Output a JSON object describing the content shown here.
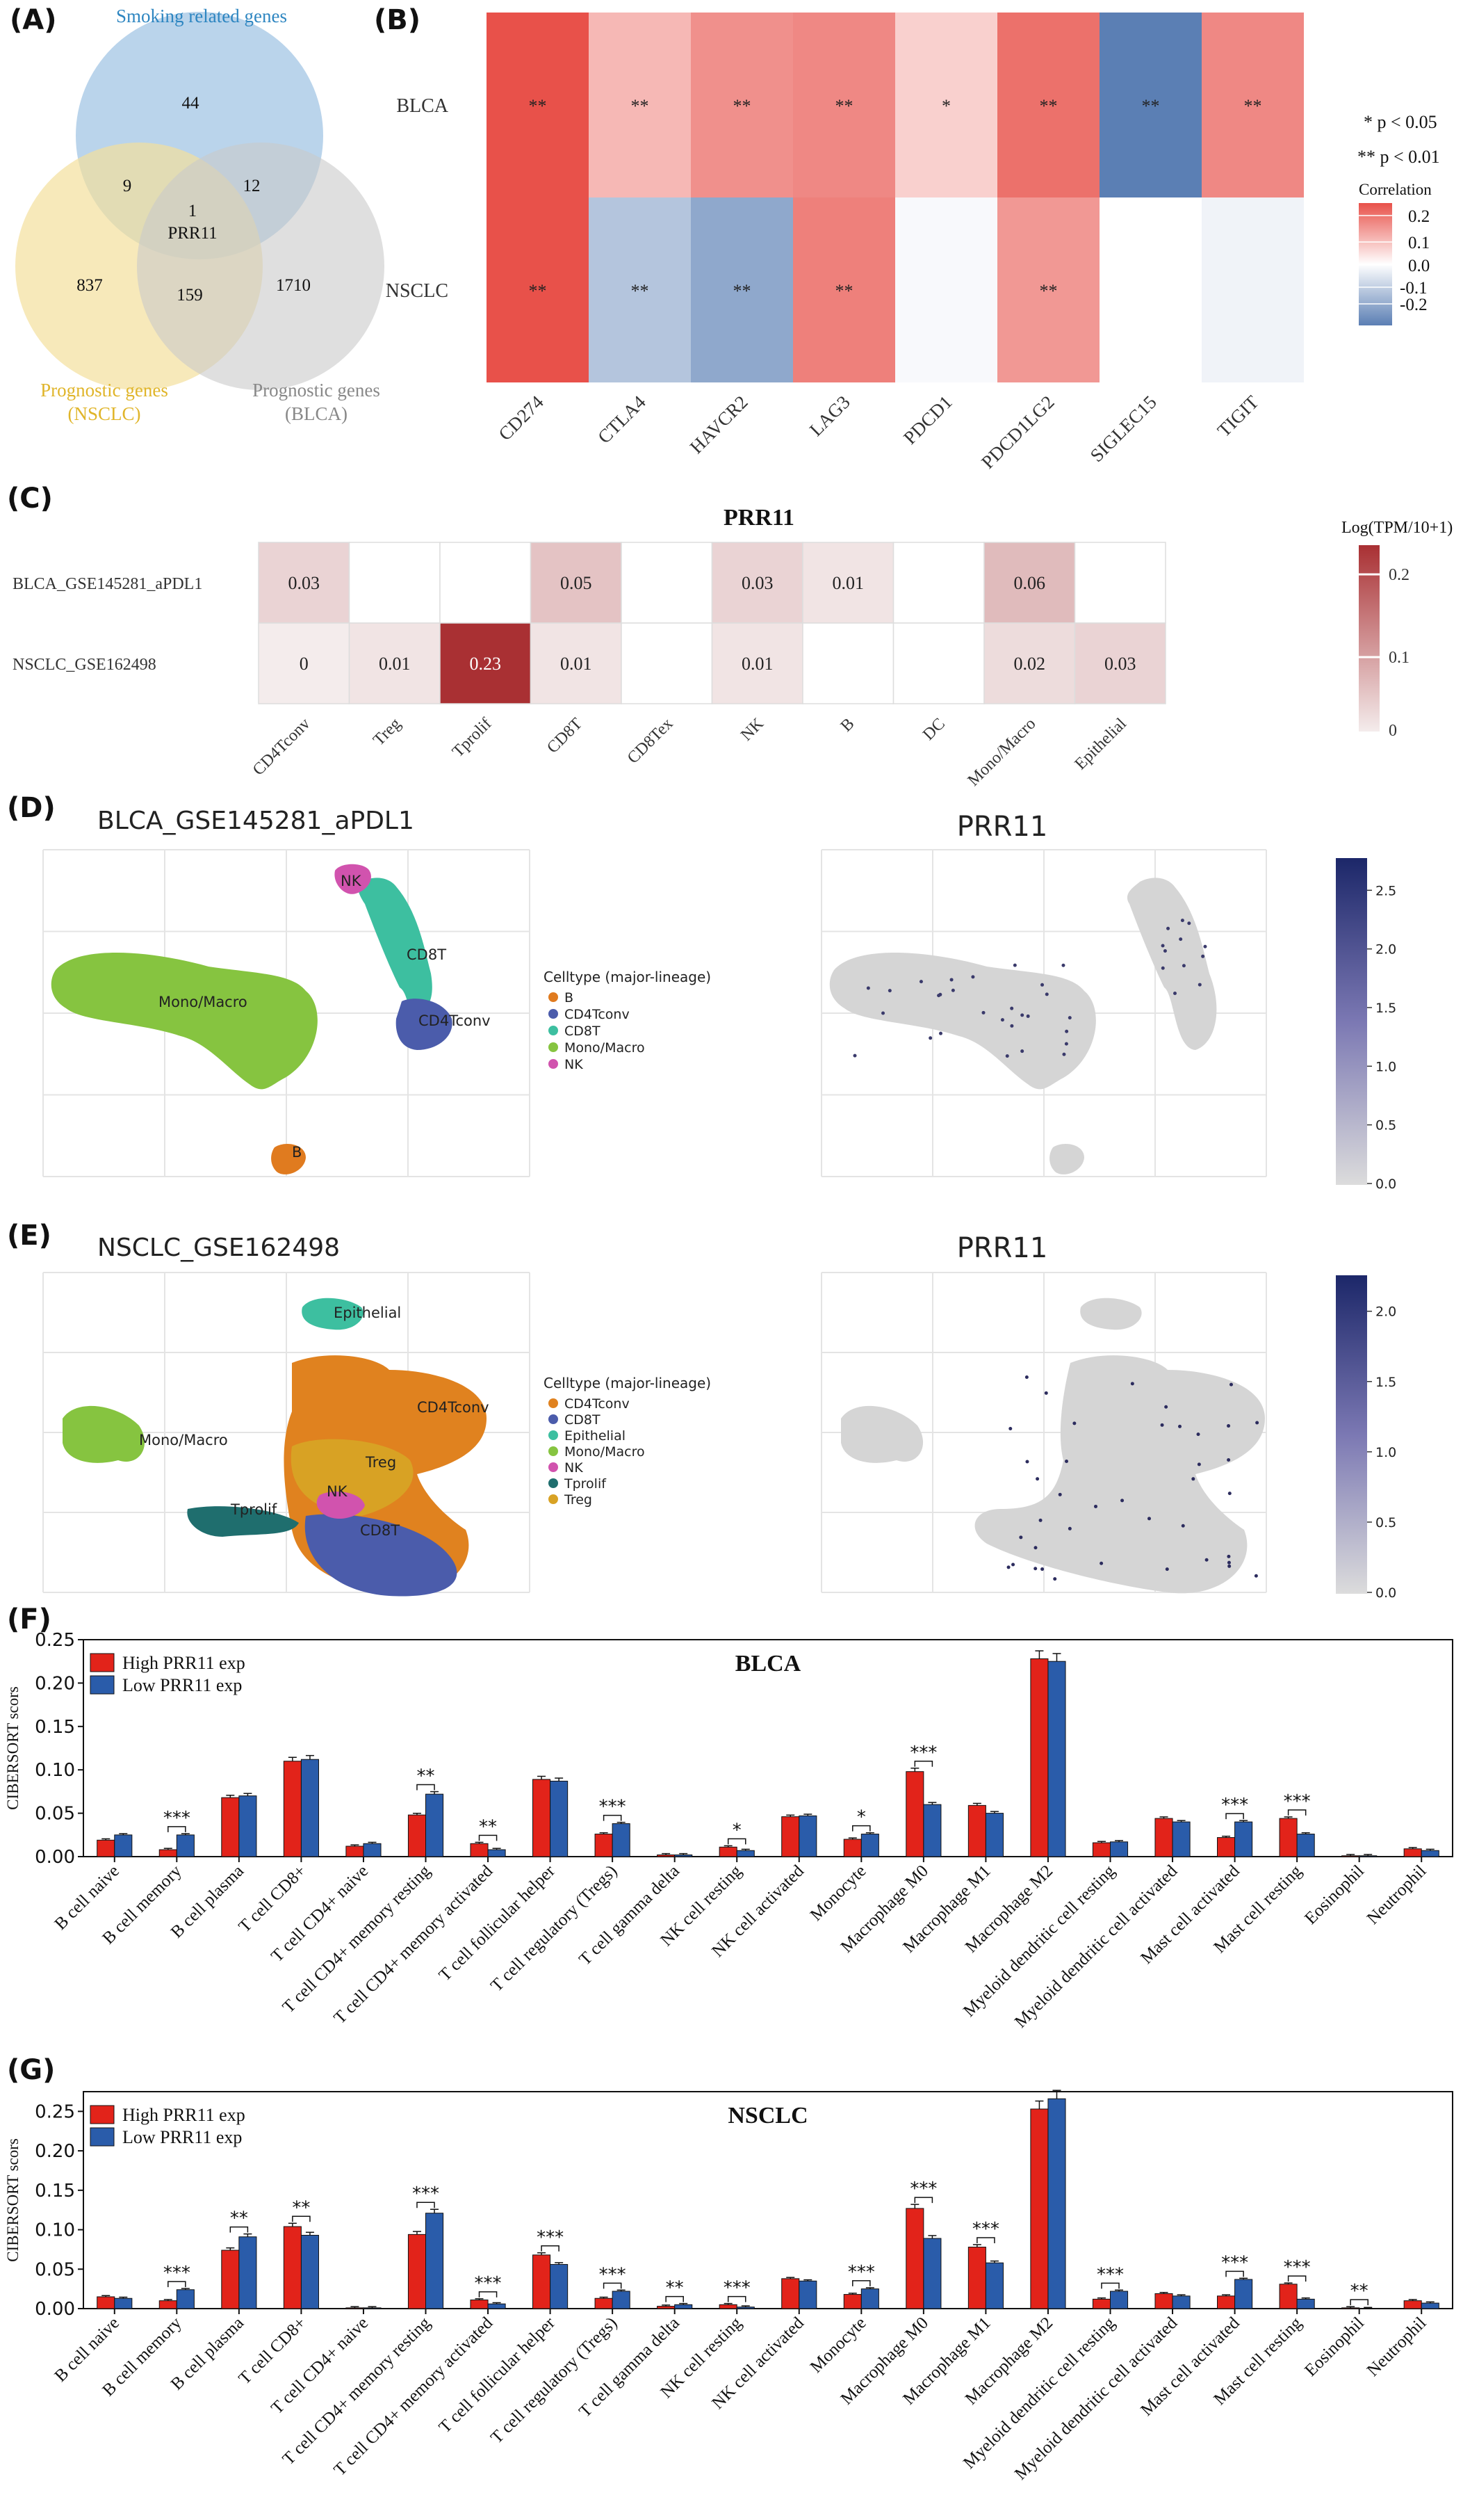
{
  "panels": {
    "a": "(A)",
    "b": "(B)",
    "c": "(C)",
    "d": "(D)",
    "e": "(E)",
    "f": "(F)",
    "g": "(G)"
  },
  "venn": {
    "smoking_label": "Smoking related genes",
    "nsclc_label_1": "Prognostic genes",
    "nsclc_label_2": "(NSCLC)",
    "blca_label_1": "Prognostic genes",
    "blca_label_2": "(BLCA)",
    "only_smoking": "44",
    "smoking_nsclc": "9",
    "smoking_blca": "12",
    "center_count": "1",
    "center_gene": "PRR11",
    "only_nsclc": "837",
    "nsclc_blca": "159",
    "only_blca": "1710",
    "colors": {
      "smoking": "#a9c9e6",
      "nsclc": "#f3df9c",
      "blca": "#c9c9c9"
    }
  },
  "chart_data": [
    {
      "type": "heatmap",
      "panel": "B",
      "rows": [
        "BLCA",
        "NSCLC"
      ],
      "columns": [
        "CD274",
        "CTLA4",
        "HAVCR2",
        "LAG3",
        "PDCD1",
        "PDCD1LG2",
        "SIGLEC15",
        "TIGIT"
      ],
      "values": [
        [
          0.22,
          0.09,
          0.14,
          0.15,
          0.06,
          0.18,
          -0.22,
          0.15
        ],
        [
          0.22,
          -0.1,
          -0.15,
          0.16,
          -0.01,
          0.13,
          0.0,
          -0.02
        ]
      ],
      "stars": [
        [
          "**",
          "**",
          "**",
          "**",
          "*",
          "**",
          "**",
          "**"
        ],
        [
          "**",
          "**",
          "**",
          "**",
          "",
          "**",
          "",
          ""
        ]
      ],
      "legend_p": [
        "* p < 0.05",
        "** p < 0.01"
      ],
      "legend_title": "Correlation",
      "legend_ticks": [
        "0.2",
        "0.1",
        "0.0",
        "-0.1",
        "-0.2"
      ],
      "colors": {
        "high": "#e8514a",
        "mid": "#ffffff",
        "low": "#5b7fb4"
      }
    },
    {
      "type": "heatmap",
      "panel": "C",
      "title": "PRR11",
      "rows": [
        "BLCA_GSE145281_aPDL1",
        "NSCLC_GSE162498"
      ],
      "columns": [
        "CD4Tconv",
        "Treg",
        "Tprolif",
        "CD8T",
        "CD8Tex",
        "NK",
        "B",
        "DC",
        "Mono/Macro",
        "Epithelial"
      ],
      "values": [
        [
          0.03,
          null,
          null,
          0.05,
          null,
          0.03,
          0.01,
          null,
          0.06,
          null
        ],
        [
          0,
          0.01,
          0.23,
          0.01,
          null,
          0.01,
          null,
          null,
          0.02,
          0.03
        ]
      ],
      "labels": [
        [
          "0.03",
          "",
          "",
          "0.05",
          "",
          "0.03",
          "0.01",
          "",
          "0.06",
          ""
        ],
        [
          "0",
          "0.01",
          "0.23",
          "0.01",
          "",
          "0.01",
          "",
          "",
          "0.02",
          "0.03"
        ]
      ],
      "legend_title": "Log(TPM/10+1)",
      "legend_ticks": [
        "0.2",
        "0.1",
        "0"
      ],
      "colors": {
        "high": "#a93033",
        "low": "#f4ecec"
      }
    },
    {
      "type": "scatter",
      "panel": "D",
      "title": "BLCA_GSE145281_aPDL1",
      "legend_title": "Celltype (major-lineage)",
      "categories": [
        "B",
        "CD4Tconv",
        "CD8T",
        "Mono/Macro",
        "NK"
      ],
      "colors": [
        "#e07b1f",
        "#4b5cab",
        "#3dbfa0",
        "#86c440",
        "#d153ae"
      ],
      "feature_title": "PRR11",
      "colorbar_ticks": [
        "0.0",
        "0.5",
        "1.0",
        "1.5",
        "2.0",
        "2.5"
      ]
    },
    {
      "type": "scatter",
      "panel": "E",
      "title": "NSCLC_GSE162498",
      "legend_title": "Celltype (major-lineage)",
      "categories": [
        "CD4Tconv",
        "CD8T",
        "Epithelial",
        "Mono/Macro",
        "NK",
        "Tprolif",
        "Treg"
      ],
      "colors": [
        "#e0821f",
        "#4b5cab",
        "#3dbfa0",
        "#86c440",
        "#d153ae",
        "#1f6e6e",
        "#d8a224"
      ],
      "feature_title": "PRR11",
      "colorbar_ticks": [
        "0.0",
        "0.5",
        "1.0",
        "1.5",
        "2.0"
      ]
    },
    {
      "type": "bar",
      "panel": "F",
      "title": "BLCA",
      "ylabel": "CIBERSORT scors",
      "ylim": [
        0,
        0.25
      ],
      "yticks": [
        "0.00",
        "0.05",
        "0.10",
        "0.15",
        "0.20",
        "0.25"
      ],
      "categories": [
        "B cell naive",
        "B cell memory",
        "B cell plasma",
        "T cell CD8+",
        "T cell CD4+ naive",
        "T cell CD4+ memory resting",
        "T cell CD4+ memory activated",
        "T cell follicular helper",
        "T cell regulatory (Tregs)",
        "T cell gamma delta",
        "NK cell resting",
        "NK cell activated",
        "Monocyte",
        "Macrophage M0",
        "Macrophage M1",
        "Macrophage M2",
        "Myeloid dendritic cell resting",
        "Myeloid dendritic cell activated",
        "Mast cell activated",
        "Mast cell resting",
        "Eosinophil",
        "Neutrophil"
      ],
      "series": [
        {
          "name": "High PRR11 exp",
          "color": "#e2231a",
          "values": [
            0.019,
            0.008,
            0.068,
            0.11,
            0.012,
            0.048,
            0.015,
            0.089,
            0.026,
            0.002,
            0.011,
            0.046,
            0.02,
            0.098,
            0.059,
            0.228,
            0.016,
            0.044,
            0.022,
            0.044,
            0.001,
            0.009
          ]
        },
        {
          "name": "Low PRR11 exp",
          "color": "#2a5caa",
          "values": [
            0.025,
            0.025,
            0.07,
            0.112,
            0.015,
            0.072,
            0.008,
            0.087,
            0.038,
            0.002,
            0.007,
            0.047,
            0.026,
            0.06,
            0.05,
            0.225,
            0.017,
            0.04,
            0.04,
            0.026,
            0.001,
            0.007
          ]
        }
      ],
      "stars": [
        "",
        "***",
        "",
        "",
        "",
        "**",
        "**",
        "",
        "***",
        "",
        "*",
        "",
        "*",
        "***",
        "",
        "",
        "",
        "",
        "***",
        "***",
        "",
        ""
      ]
    },
    {
      "type": "bar",
      "panel": "G",
      "title": "NSCLC",
      "ylabel": "CIBERSORT scors",
      "ylim": [
        0,
        0.275
      ],
      "yticks": [
        "0.00",
        "0.05",
        "0.10",
        "0.15",
        "0.20",
        "0.25"
      ],
      "categories": [
        "B cell naive",
        "B cell memory",
        "B cell plasma",
        "T cell CD8+",
        "T cell CD4+ naive",
        "T cell CD4+ memory resting",
        "T cell CD4+ memory activated",
        "T cell follicular helper",
        "T cell regulatory (Tregs)",
        "T cell gamma delta",
        "NK cell resting",
        "NK cell activated",
        "Monocyte",
        "Macrophage M0",
        "Macrophage M1",
        "Macrophage M2",
        "Myeloid dendritic cell resting",
        "Myeloid dendritic cell activated",
        "Mast cell activated",
        "Mast cell resting",
        "Eosinophil",
        "Neutrophil"
      ],
      "series": [
        {
          "name": "High PRR11 exp",
          "color": "#e2231a",
          "values": [
            0.015,
            0.01,
            0.074,
            0.104,
            0.001,
            0.094,
            0.011,
            0.068,
            0.013,
            0.003,
            0.005,
            0.038,
            0.018,
            0.127,
            0.078,
            0.253,
            0.012,
            0.019,
            0.016,
            0.031,
            0.001,
            0.01
          ]
        },
        {
          "name": "Low PRR11 exp",
          "color": "#2a5caa",
          "values": [
            0.013,
            0.024,
            0.091,
            0.093,
            0.001,
            0.121,
            0.006,
            0.056,
            0.022,
            0.005,
            0.002,
            0.035,
            0.025,
            0.089,
            0.058,
            0.266,
            0.022,
            0.016,
            0.037,
            0.012,
            0.0,
            0.007
          ]
        }
      ],
      "stars": [
        "",
        "***",
        "**",
        "**",
        "",
        "***",
        "***",
        "***",
        "***",
        "**",
        "***",
        "",
        "***",
        "***",
        "***",
        "",
        "***",
        "",
        "***",
        "***",
        "**",
        ""
      ]
    }
  ]
}
